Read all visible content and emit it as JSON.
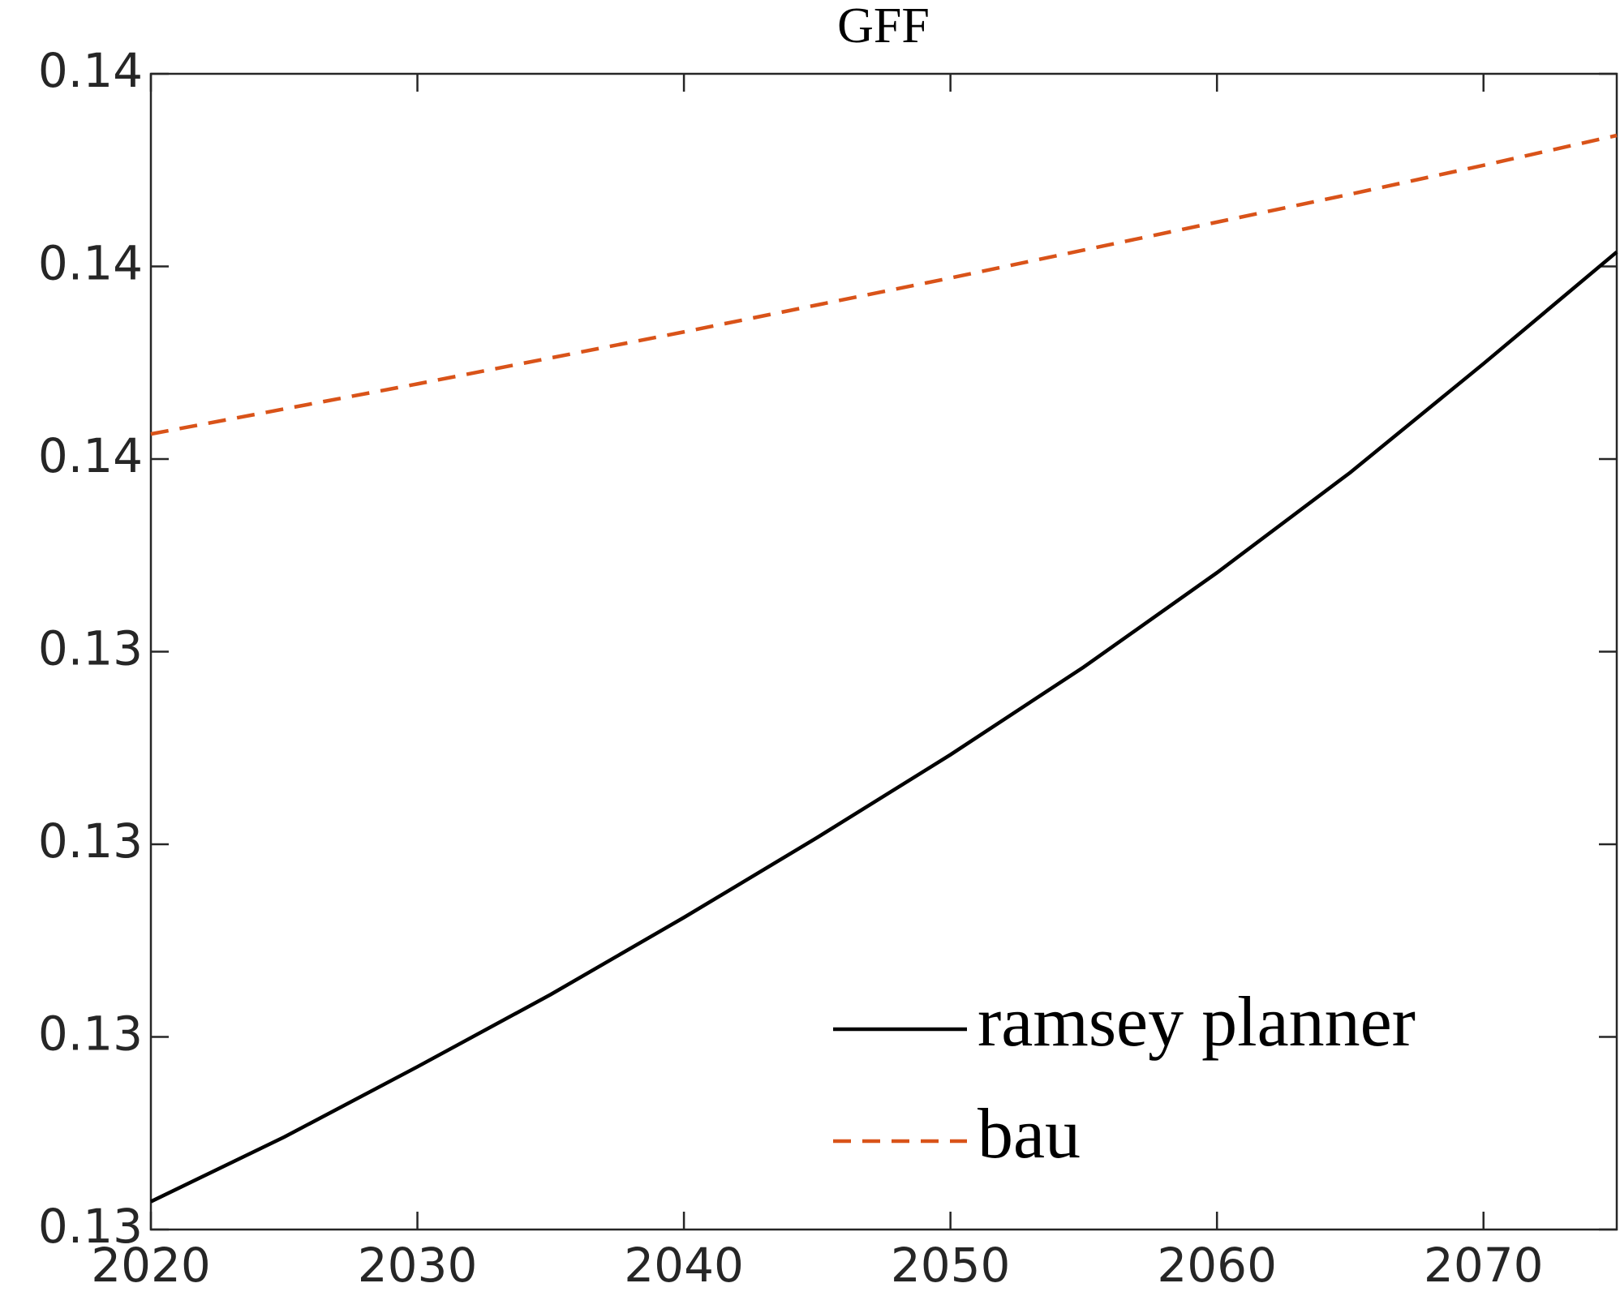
{
  "chart_data": {
    "type": "line",
    "title": "GFF",
    "x": [
      2020,
      2025,
      2030,
      2035,
      2040,
      2045,
      2050,
      2055,
      2060,
      2065,
      2070,
      2075
    ],
    "series": [
      {
        "name": "ramsey planner",
        "color": "#000000",
        "dash": false,
        "values": [
          0.12829,
          0.12896,
          0.12969,
          0.13044,
          0.13124,
          0.13207,
          0.13293,
          0.13384,
          0.13482,
          0.13586,
          0.13699,
          0.13815
        ]
      },
      {
        "name": "bau",
        "color": "#d95319",
        "dash": true,
        "values": [
          0.13626,
          0.13652,
          0.13678,
          0.13705,
          0.13732,
          0.1376,
          0.13788,
          0.13817,
          0.13846,
          0.13875,
          0.13905,
          0.13936
        ]
      }
    ],
    "xlim": [
      2020,
      2075
    ],
    "xticks": [
      2020,
      2030,
      2040,
      2050,
      2060,
      2070
    ],
    "ylim": [
      0.128,
      0.14
    ],
    "yticks": [
      {
        "value": 0.128,
        "label": "0.13"
      },
      {
        "value": 0.13,
        "label": "0.13"
      },
      {
        "value": 0.132,
        "label": "0.13"
      },
      {
        "value": 0.134,
        "label": "0.13"
      },
      {
        "value": 0.136,
        "label": "0.14"
      },
      {
        "value": 0.138,
        "label": "0.14"
      },
      {
        "value": 0.14,
        "label": "0.14"
      }
    ],
    "grid": false,
    "legend": "southeast"
  }
}
